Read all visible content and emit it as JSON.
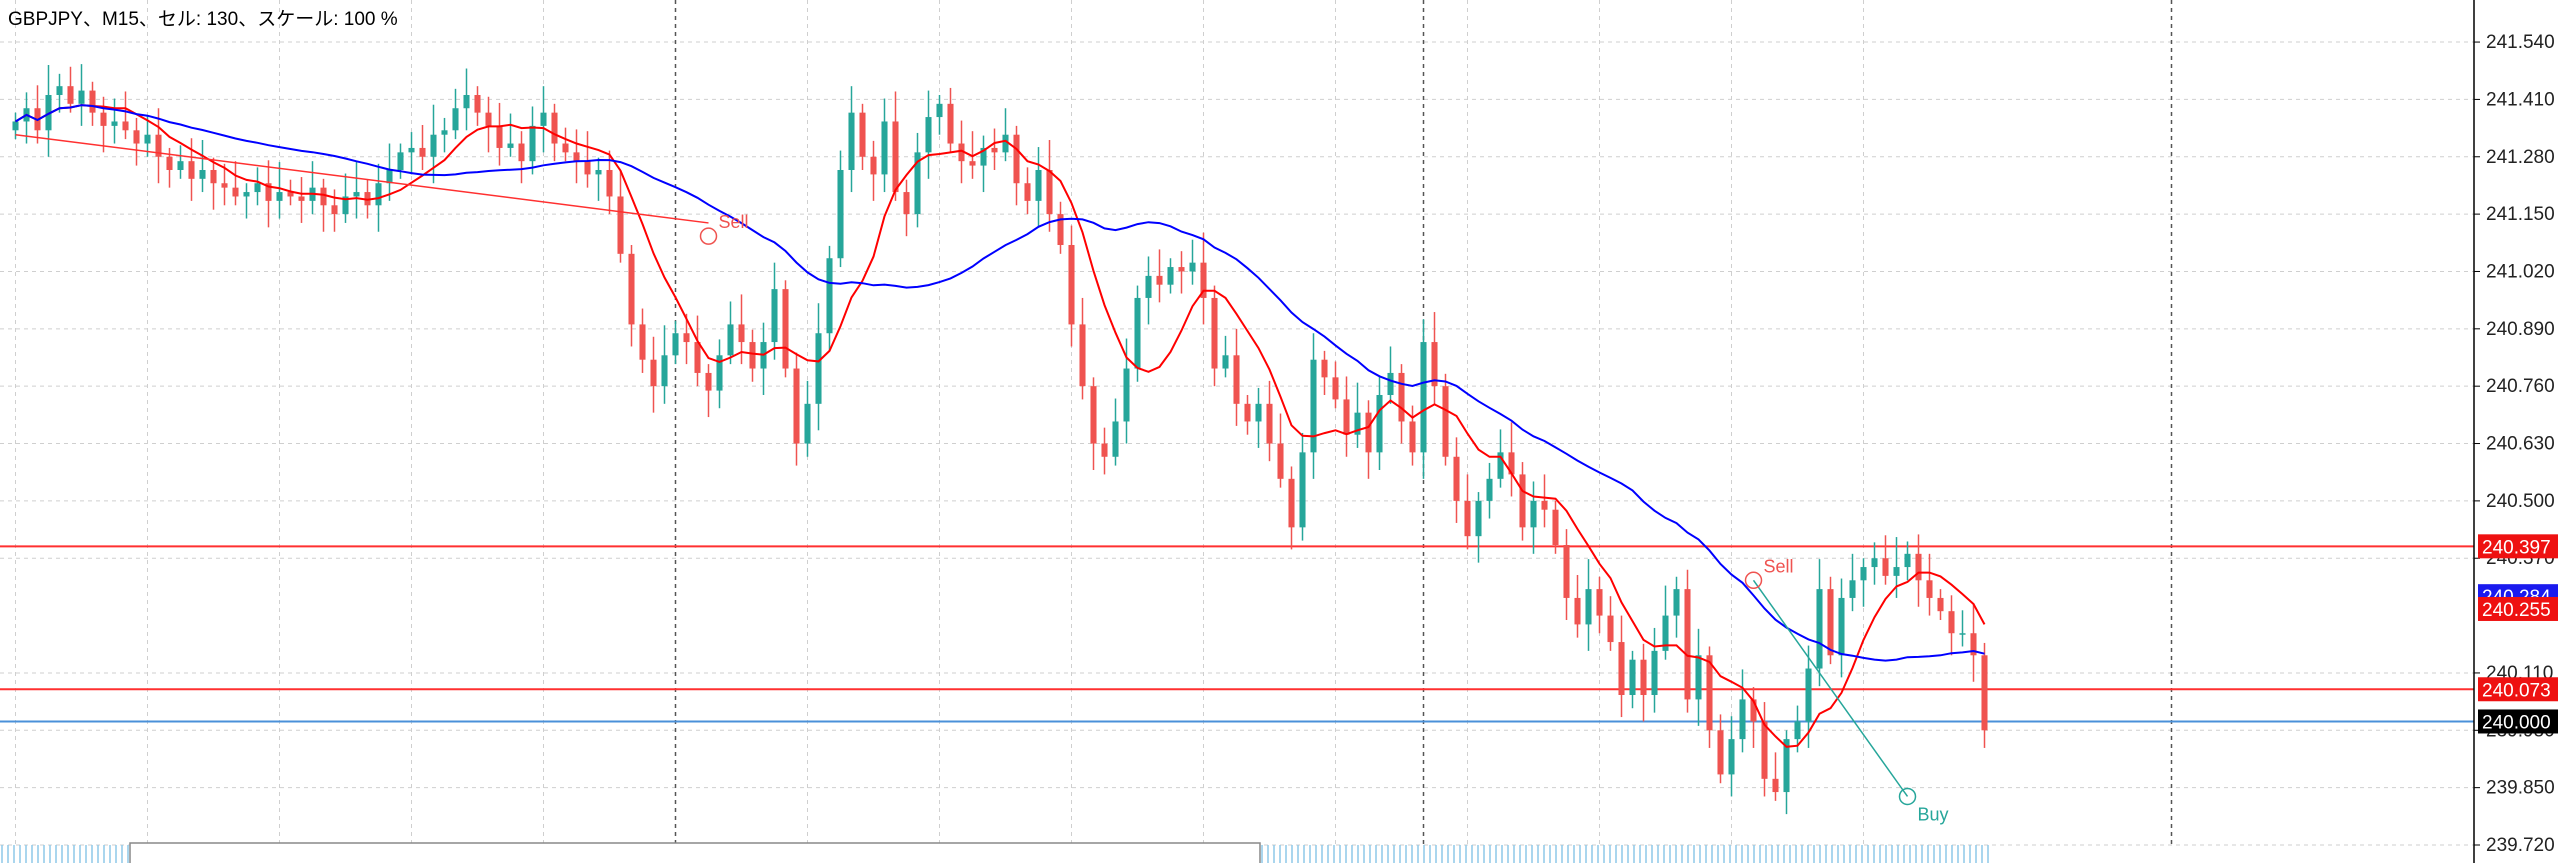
{
  "header": {
    "title": "GBPJPY、M15、セル: 130、スケール: 100 %"
  },
  "colors": {
    "bull": "#26a69a",
    "bear": "#ef5350",
    "ma_fast": "#ff0000",
    "ma_slow": "#0000ff",
    "line_red": "#ff3030",
    "line_blue": "#4a90d9",
    "grid": "#cfcfcf",
    "separator": "#555555"
  },
  "chart_data": {
    "type": "candlestick",
    "symbol": "GBPJPY",
    "timeframe": "M15",
    "ylim": [
      239.72,
      241.59
    ],
    "y_ticks": [
      "241.540",
      "241.410",
      "241.280",
      "241.150",
      "241.020",
      "240.890",
      "240.760",
      "240.630",
      "240.500",
      "240.370",
      "240.110",
      "239.980",
      "239.850",
      "239.720"
    ],
    "closes": [
      241.36,
      241.39,
      241.34,
      241.42,
      241.44,
      241.4,
      241.43,
      241.38,
      241.35,
      241.36,
      241.34,
      241.31,
      241.33,
      241.28,
      241.25,
      241.27,
      241.23,
      241.25,
      241.22,
      241.21,
      241.19,
      241.2,
      241.22,
      241.18,
      241.2,
      241.19,
      241.18,
      241.21,
      241.17,
      241.15,
      241.19,
      241.2,
      241.17,
      241.22,
      241.25,
      241.29,
      241.3,
      241.28,
      241.33,
      241.34,
      241.39,
      241.42,
      241.38,
      241.35,
      241.3,
      241.31,
      241.27,
      241.35,
      241.38,
      241.31,
      241.29,
      241.27,
      241.24,
      241.25,
      241.19,
      241.06,
      240.9,
      240.82,
      240.76,
      240.83,
      240.88,
      240.86,
      240.79,
      240.75,
      240.83,
      240.9,
      240.86,
      240.8,
      240.86,
      240.98,
      240.8,
      240.63,
      240.72,
      240.88,
      241.05,
      241.25,
      241.38,
      241.28,
      241.24,
      241.36,
      241.2,
      241.15,
      241.29,
      241.37,
      241.4,
      241.31,
      241.27,
      241.26,
      241.3,
      241.29,
      241.33,
      241.22,
      241.18,
      241.25,
      241.15,
      241.08,
      240.9,
      240.76,
      240.63,
      240.6,
      240.68,
      240.8,
      240.96,
      241.01,
      240.99,
      241.03,
      241.02,
      241.04,
      240.96,
      240.8,
      240.83,
      240.72,
      240.68,
      240.72,
      240.63,
      240.55,
      240.44,
      240.61,
      240.82,
      240.78,
      240.73,
      240.65,
      240.7,
      240.61,
      240.74,
      240.79,
      240.68,
      240.61,
      240.86,
      240.76,
      240.6,
      240.5,
      240.42,
      240.5,
      240.55,
      240.61,
      240.56,
      240.44,
      240.5,
      240.48,
      240.4,
      240.28,
      240.22,
      240.3,
      240.24,
      240.18,
      240.06,
      240.14,
      240.06,
      240.16,
      240.24,
      240.3,
      240.05,
      240.15,
      239.98,
      239.88,
      239.96,
      240.05,
      240.0,
      239.87,
      239.84,
      239.96,
      240.0,
      240.12,
      240.3,
      240.15,
      240.28,
      240.32,
      240.35,
      240.37,
      240.33,
      240.35,
      240.38,
      240.32,
      240.28,
      240.25,
      240.2,
      240.2,
      240.15,
      239.98
    ],
    "opens_seed": 241.36,
    "levels": [
      {
        "label": "240.397",
        "value": 240.397,
        "color": "#ff3030"
      },
      {
        "label": "240.073",
        "value": 240.073,
        "color": "#ff3030"
      },
      {
        "label": "240.000",
        "value": 240.0,
        "color": "#4a90d9"
      }
    ],
    "badges": [
      {
        "label": "240.397",
        "value": 240.397,
        "bg": "#ee1111"
      },
      {
        "label": "240.284",
        "value": 240.284,
        "bg": "#1a1aee"
      },
      {
        "label": "240.255",
        "value": 240.255,
        "bg": "#ee1111"
      },
      {
        "label": "240.073",
        "value": 240.073,
        "bg": "#ee1111"
      },
      {
        "label": "240.000",
        "value": 240.0,
        "bg": "#000000"
      }
    ],
    "signals": [
      {
        "label": "Sell",
        "index": 63,
        "value": 241.1,
        "color": "#ef5350"
      },
      {
        "label": "Sell",
        "index": 158,
        "value": 240.32,
        "color": "#ef5350"
      },
      {
        "label": "Buy",
        "index": 172,
        "value": 239.83,
        "color": "#26a69a"
      }
    ],
    "trend_lines": [
      {
        "from_index": 0,
        "from_value": 241.33,
        "to_index": 63,
        "to_value": 241.13,
        "color": "#ff3030"
      },
      {
        "from_index": 158,
        "from_value": 240.32,
        "to_index": 172,
        "to_value": 239.83,
        "color": "#26a69a"
      }
    ],
    "separators_index": [
      60,
      128,
      196
    ]
  }
}
